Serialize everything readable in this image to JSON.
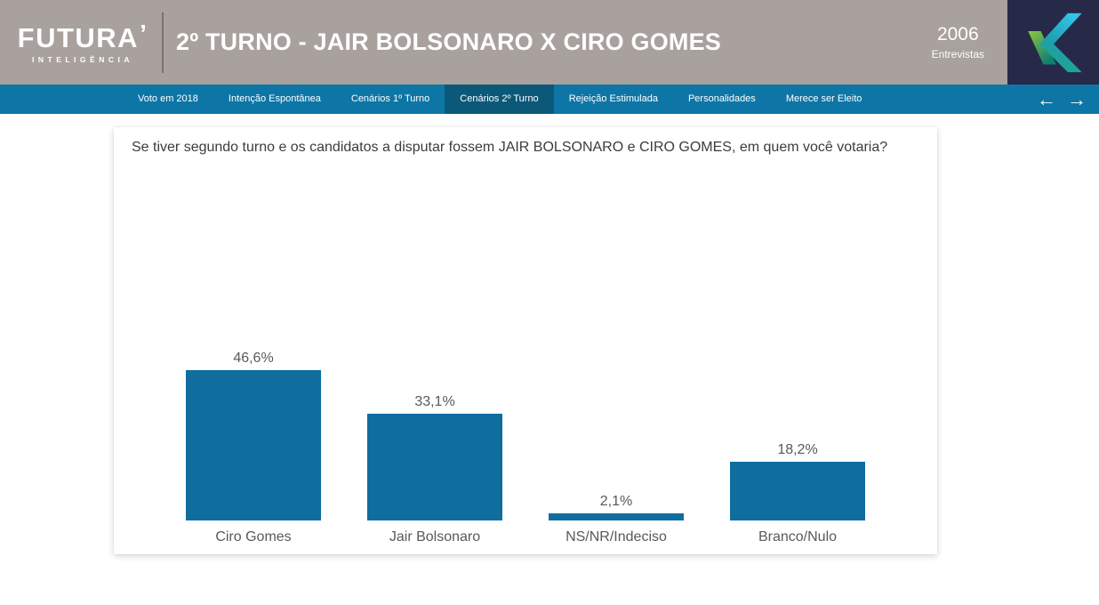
{
  "header": {
    "brand": {
      "name": "FUTURA",
      "mark": "’",
      "subtitle": "INTELIGÊNCIA"
    },
    "title": "2º TURNO - JAIR BOLSONARO X CIRO GOMES",
    "sample_count": "2006",
    "sample_label": "Entrevistas"
  },
  "nav": {
    "tabs": [
      {
        "label": "Voto em 2018",
        "active": false
      },
      {
        "label": "Intenção Espontânea",
        "active": false
      },
      {
        "label": "Cenários 1º Turno",
        "active": false
      },
      {
        "label": "Cenários 2º Turno",
        "active": true
      },
      {
        "label": "Rejeição Estimulada",
        "active": false
      },
      {
        "label": "Personalidades",
        "active": false
      },
      {
        "label": "Merece ser Eleito",
        "active": false
      }
    ],
    "arrows": {
      "left": "←",
      "right": "→"
    }
  },
  "main": {
    "question": "Se tiver segundo turno e os candidatos a disputar fossem JAIR BOLSONARO e CIRO GOMES, em quem você votaria?"
  },
  "chart_data": {
    "type": "bar",
    "title": "Se tiver segundo turno e os candidatos a disputar fossem JAIR BOLSONARO e CIRO GOMES, em quem você votaria?",
    "categories": [
      "Ciro Gomes",
      "Jair Bolsonaro",
      "NS/NR/Indeciso",
      "Branco/Nulo"
    ],
    "values": [
      46.6,
      33.1,
      2.1,
      18.2
    ],
    "value_labels": [
      "46,6%",
      "33,1%",
      "2,1%",
      "18,2%"
    ],
    "xlabel": "",
    "ylabel": "",
    "ylim": [
      0,
      50
    ],
    "grid": false,
    "legend": false,
    "bar_color": "#0f6e9e",
    "label_color": "#595959"
  },
  "colors": {
    "header_bg": "#a8a19d",
    "nav_bg": "#0d76a6",
    "nav_active_bg": "#0b5878",
    "logo_square_bg": "#262a48",
    "logo_cyan": "#35c4e8",
    "logo_green": "#8dc63f",
    "logo_teal": "#17907c"
  }
}
